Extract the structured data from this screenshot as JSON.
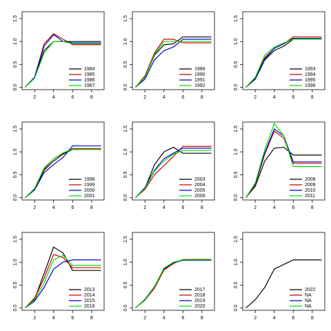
{
  "chart_data": [
    {
      "type": "line",
      "x": [
        1,
        2,
        3,
        4,
        5,
        6,
        7,
        8,
        9
      ],
      "xlim": [
        0.68,
        9.32
      ],
      "xticks": [
        2,
        4,
        6,
        8
      ],
      "ylim": [
        -0.05,
        1.65
      ],
      "yticks": [
        {
          "value": 0,
          "label": "0.0"
        },
        {
          "value": 0.5,
          "label": "0.5"
        },
        {
          "value": 1,
          "label": "1.0"
        },
        {
          "value": 1.5,
          "label": "1.5"
        }
      ],
      "series": [
        {
          "name": "1984",
          "color": "#000000",
          "values": [
            0,
            0.22,
            0.8,
            1.0,
            1.0,
            1.0,
            1.0,
            1.0,
            1.0
          ]
        },
        {
          "name": "1985",
          "color": "#cc0000",
          "values": [
            0,
            0.22,
            0.95,
            1.17,
            1.05,
            0.93,
            0.93,
            0.93,
            0.93
          ]
        },
        {
          "name": "1986",
          "color": "#0000cc",
          "values": [
            0,
            0.22,
            0.9,
            1.15,
            1.0,
            0.97,
            0.97,
            0.97,
            0.97
          ]
        },
        {
          "name": "1987",
          "color": "#00dd00",
          "values": [
            0,
            0.2,
            0.75,
            1.0,
            1.0,
            0.95,
            0.95,
            0.95,
            0.95
          ]
        }
      ]
    },
    {
      "type": "line",
      "x": [
        1,
        2,
        3,
        4,
        5,
        6,
        7,
        8,
        9
      ],
      "xlim": [
        0.68,
        9.32
      ],
      "xticks": [
        2,
        4,
        6,
        8
      ],
      "ylim": [
        -0.05,
        1.65
      ],
      "yticks": [
        {
          "value": 0,
          "label": "0.0"
        },
        {
          "value": 0.5,
          "label": "0.5"
        },
        {
          "value": 1,
          "label": "1.0"
        },
        {
          "value": 1.5,
          "label": "1.5"
        }
      ],
      "series": [
        {
          "name": "1989",
          "color": "#000000",
          "values": [
            0,
            0.22,
            0.7,
            0.93,
            0.95,
            1.1,
            1.1,
            1.1,
            1.1
          ]
        },
        {
          "name": "1990",
          "color": "#cc0000",
          "values": [
            0,
            0.25,
            0.75,
            1.05,
            1.05,
            0.97,
            0.97,
            0.97,
            0.97
          ]
        },
        {
          "name": "1991",
          "color": "#0000cc",
          "values": [
            0,
            0.18,
            0.6,
            0.8,
            0.88,
            1.05,
            1.05,
            1.05,
            1.05
          ]
        },
        {
          "name": "1992",
          "color": "#00dd00",
          "values": [
            0,
            0.22,
            0.72,
            1.0,
            1.0,
            1.0,
            1.0,
            1.0,
            1.0
          ]
        }
      ]
    },
    {
      "type": "line",
      "x": [
        1,
        2,
        3,
        4,
        5,
        6,
        7,
        8,
        9
      ],
      "xlim": [
        0.68,
        9.32
      ],
      "xticks": [
        2,
        4,
        6,
        8
      ],
      "ylim": [
        -0.05,
        1.65
      ],
      "yticks": [
        {
          "value": 0,
          "label": "0.0"
        },
        {
          "value": 0.5,
          "label": "0.5"
        },
        {
          "value": 1,
          "label": "1.0"
        },
        {
          "value": 1.5,
          "label": "1.5"
        }
      ],
      "series": [
        {
          "name": "1993",
          "color": "#000000",
          "values": [
            0,
            0.18,
            0.6,
            0.8,
            0.9,
            1.05,
            1.05,
            1.05,
            1.05
          ]
        },
        {
          "name": "1994",
          "color": "#cc0000",
          "values": [
            0,
            0.2,
            0.65,
            0.85,
            0.95,
            1.1,
            1.1,
            1.1,
            1.1
          ]
        },
        {
          "name": "1995",
          "color": "#0000cc",
          "values": [
            0,
            0.2,
            0.62,
            0.85,
            0.95,
            1.07,
            1.07,
            1.07,
            1.07
          ]
        },
        {
          "name": "1996",
          "color": "#00dd00",
          "values": [
            0,
            0.22,
            0.7,
            0.88,
            0.97,
            1.05,
            1.05,
            1.05,
            1.05
          ]
        }
      ]
    },
    {
      "type": "line",
      "x": [
        1,
        2,
        3,
        4,
        5,
        6,
        7,
        8,
        9
      ],
      "xlim": [
        0.68,
        9.32
      ],
      "xticks": [
        2,
        4,
        6,
        8
      ],
      "ylim": [
        -0.05,
        1.65
      ],
      "yticks": [
        {
          "value": 0,
          "label": "0.0"
        },
        {
          "value": 0.5,
          "label": "0.5"
        },
        {
          "value": 1,
          "label": "1.0"
        },
        {
          "value": 1.5,
          "label": "1.5"
        }
      ],
      "series": [
        {
          "name": "1998",
          "color": "#000000",
          "values": [
            0,
            0.18,
            0.6,
            0.8,
            0.95,
            1.05,
            1.05,
            1.05,
            1.05
          ]
        },
        {
          "name": "1999",
          "color": "#cc0000",
          "values": [
            0,
            0.2,
            0.63,
            0.85,
            0.97,
            1.07,
            1.07,
            1.07,
            1.07
          ]
        },
        {
          "name": "2000",
          "color": "#0000cc",
          "values": [
            0,
            0.17,
            0.55,
            0.72,
            0.88,
            1.13,
            1.13,
            1.13,
            1.13
          ]
        },
        {
          "name": "2001",
          "color": "#00dd00",
          "values": [
            0,
            0.2,
            0.65,
            0.85,
            0.98,
            1.05,
            1.05,
            1.05,
            1.05
          ]
        }
      ]
    },
    {
      "type": "line",
      "x": [
        1,
        2,
        3,
        4,
        5,
        6,
        7,
        8,
        9
      ],
      "xlim": [
        0.68,
        9.32
      ],
      "xticks": [
        2,
        4,
        6,
        8
      ],
      "ylim": [
        -0.05,
        1.65
      ],
      "yticks": [
        {
          "value": 0,
          "label": "0.0"
        },
        {
          "value": 0.5,
          "label": "0.5"
        },
        {
          "value": 1,
          "label": "1.0"
        },
        {
          "value": 1.5,
          "label": "1.5"
        }
      ],
      "series": [
        {
          "name": "2003",
          "color": "#000000",
          "values": [
            0,
            0.2,
            0.72,
            1.0,
            1.1,
            0.97,
            0.97,
            0.97,
            0.97
          ]
        },
        {
          "name": "2004",
          "color": "#cc0000",
          "values": [
            0,
            0.18,
            0.5,
            0.7,
            0.9,
            1.12,
            1.12,
            1.12,
            1.12
          ]
        },
        {
          "name": "2005",
          "color": "#0000cc",
          "values": [
            0,
            0.22,
            0.6,
            0.85,
            0.97,
            1.08,
            1.08,
            1.08,
            1.08
          ]
        },
        {
          "name": "2006",
          "color": "#00dd00",
          "values": [
            0,
            0.2,
            0.58,
            0.8,
            0.95,
            1.03,
            1.03,
            1.03,
            1.03
          ]
        }
      ]
    },
    {
      "type": "line",
      "x": [
        1,
        2,
        3,
        4,
        5,
        6,
        7,
        8,
        9
      ],
      "xlim": [
        0.68,
        9.32
      ],
      "xticks": [
        2,
        4,
        6,
        8
      ],
      "ylim": [
        -0.05,
        1.65
      ],
      "yticks": [
        {
          "value": 0,
          "label": "0.0"
        },
        {
          "value": 0.5,
          "label": "0.5"
        },
        {
          "value": 1,
          "label": "1.0"
        },
        {
          "value": 1.5,
          "label": "1.5"
        }
      ],
      "series": [
        {
          "name": "2008",
          "color": "#000000",
          "values": [
            0,
            0.25,
            0.8,
            1.08,
            1.1,
            0.93,
            0.93,
            0.93,
            0.93
          ]
        },
        {
          "name": "2009",
          "color": "#cc0000",
          "values": [
            0,
            0.28,
            0.95,
            1.45,
            1.3,
            0.75,
            0.75,
            0.75,
            0.75
          ]
        },
        {
          "name": "2010",
          "color": "#0000cc",
          "values": [
            0,
            0.3,
            0.98,
            1.5,
            1.35,
            0.78,
            0.78,
            0.78,
            0.78
          ]
        },
        {
          "name": "2011",
          "color": "#00dd00",
          "values": [
            0,
            0.32,
            1.05,
            1.62,
            1.35,
            0.68,
            0.68,
            0.68,
            0.68
          ]
        }
      ]
    },
    {
      "type": "line",
      "x": [
        1,
        2,
        3,
        4,
        5,
        6,
        7,
        8,
        9
      ],
      "xlim": [
        0.68,
        9.32
      ],
      "xticks": [
        2,
        4,
        6,
        8
      ],
      "ylim": [
        -0.05,
        1.65
      ],
      "yticks": [
        {
          "value": 0,
          "label": "0.0"
        },
        {
          "value": 0.5,
          "label": "0.5"
        },
        {
          "value": 1,
          "label": "1.0"
        },
        {
          "value": 1.5,
          "label": "1.5"
        }
      ],
      "series": [
        {
          "name": "2013",
          "color": "#000000",
          "values": [
            0,
            0.2,
            0.75,
            1.33,
            1.2,
            0.82,
            0.82,
            0.82,
            0.82
          ]
        },
        {
          "name": "2014",
          "color": "#cc0000",
          "values": [
            0,
            0.22,
            0.65,
            1.17,
            1.1,
            0.88,
            0.88,
            0.88,
            0.88
          ]
        },
        {
          "name": "2015",
          "color": "#0000cc",
          "values": [
            0,
            0.15,
            0.45,
            0.85,
            1.0,
            1.05,
            1.05,
            1.05,
            1.05
          ]
        },
        {
          "name": "2016",
          "color": "#00dd00",
          "values": [
            0,
            0.18,
            0.55,
            1.05,
            1.15,
            0.93,
            0.93,
            0.93,
            0.93
          ]
        }
      ]
    },
    {
      "type": "line",
      "x": [
        1,
        2,
        3,
        4,
        5,
        6,
        7,
        8,
        9
      ],
      "xlim": [
        0.68,
        9.32
      ],
      "xticks": [
        2,
        4,
        6,
        8
      ],
      "ylim": [
        -0.05,
        1.65
      ],
      "yticks": [
        {
          "value": 0,
          "label": "0.0"
        },
        {
          "value": 0.5,
          "label": "0.5"
        },
        {
          "value": 1,
          "label": "1.0"
        },
        {
          "value": 1.5,
          "label": "1.5"
        }
      ],
      "series": [
        {
          "name": "2017",
          "color": "#000000",
          "values": [
            0,
            0.18,
            0.45,
            0.85,
            0.98,
            1.05,
            1.05,
            1.05,
            1.05
          ]
        },
        {
          "name": "2018",
          "color": "#cc0000",
          "values": [
            0,
            0.17,
            0.43,
            0.83,
            0.97,
            1.06,
            1.06,
            1.06,
            1.06
          ]
        },
        {
          "name": "2019",
          "color": "#0000cc",
          "values": [
            0,
            0.19,
            0.47,
            0.86,
            0.99,
            1.04,
            1.04,
            1.04,
            1.04
          ]
        },
        {
          "name": "2020",
          "color": "#00dd00",
          "values": [
            0,
            0.18,
            0.46,
            0.87,
            1.0,
            1.05,
            1.05,
            1.05,
            1.05
          ]
        }
      ]
    },
    {
      "type": "line",
      "x": [
        1,
        2,
        3,
        4,
        5,
        6,
        7,
        8,
        9
      ],
      "xlim": [
        0.68,
        9.32
      ],
      "xticks": [
        2,
        4,
        6,
        8
      ],
      "ylim": [
        -0.05,
        1.65
      ],
      "yticks": [
        {
          "value": 0,
          "label": "0.0"
        },
        {
          "value": 0.5,
          "label": "0.5"
        },
        {
          "value": 1,
          "label": "1.0"
        },
        {
          "value": 1.5,
          "label": "1.5"
        }
      ],
      "series": [
        {
          "name": "2022",
          "color": "#000000",
          "values": [
            0,
            0.18,
            0.45,
            0.85,
            0.95,
            1.05,
            1.05,
            1.05,
            1.05
          ]
        },
        {
          "name": "NA",
          "color": "#cc0000",
          "values": [
            null,
            null,
            null,
            null,
            null,
            null,
            null,
            null,
            null
          ]
        },
        {
          "name": "NA",
          "color": "#0000cc",
          "values": [
            null,
            null,
            null,
            null,
            null,
            null,
            null,
            null,
            null
          ]
        },
        {
          "name": "NA",
          "color": "#00dd00",
          "values": [
            null,
            null,
            null,
            null,
            null,
            null,
            null,
            null,
            null
          ]
        }
      ]
    }
  ]
}
